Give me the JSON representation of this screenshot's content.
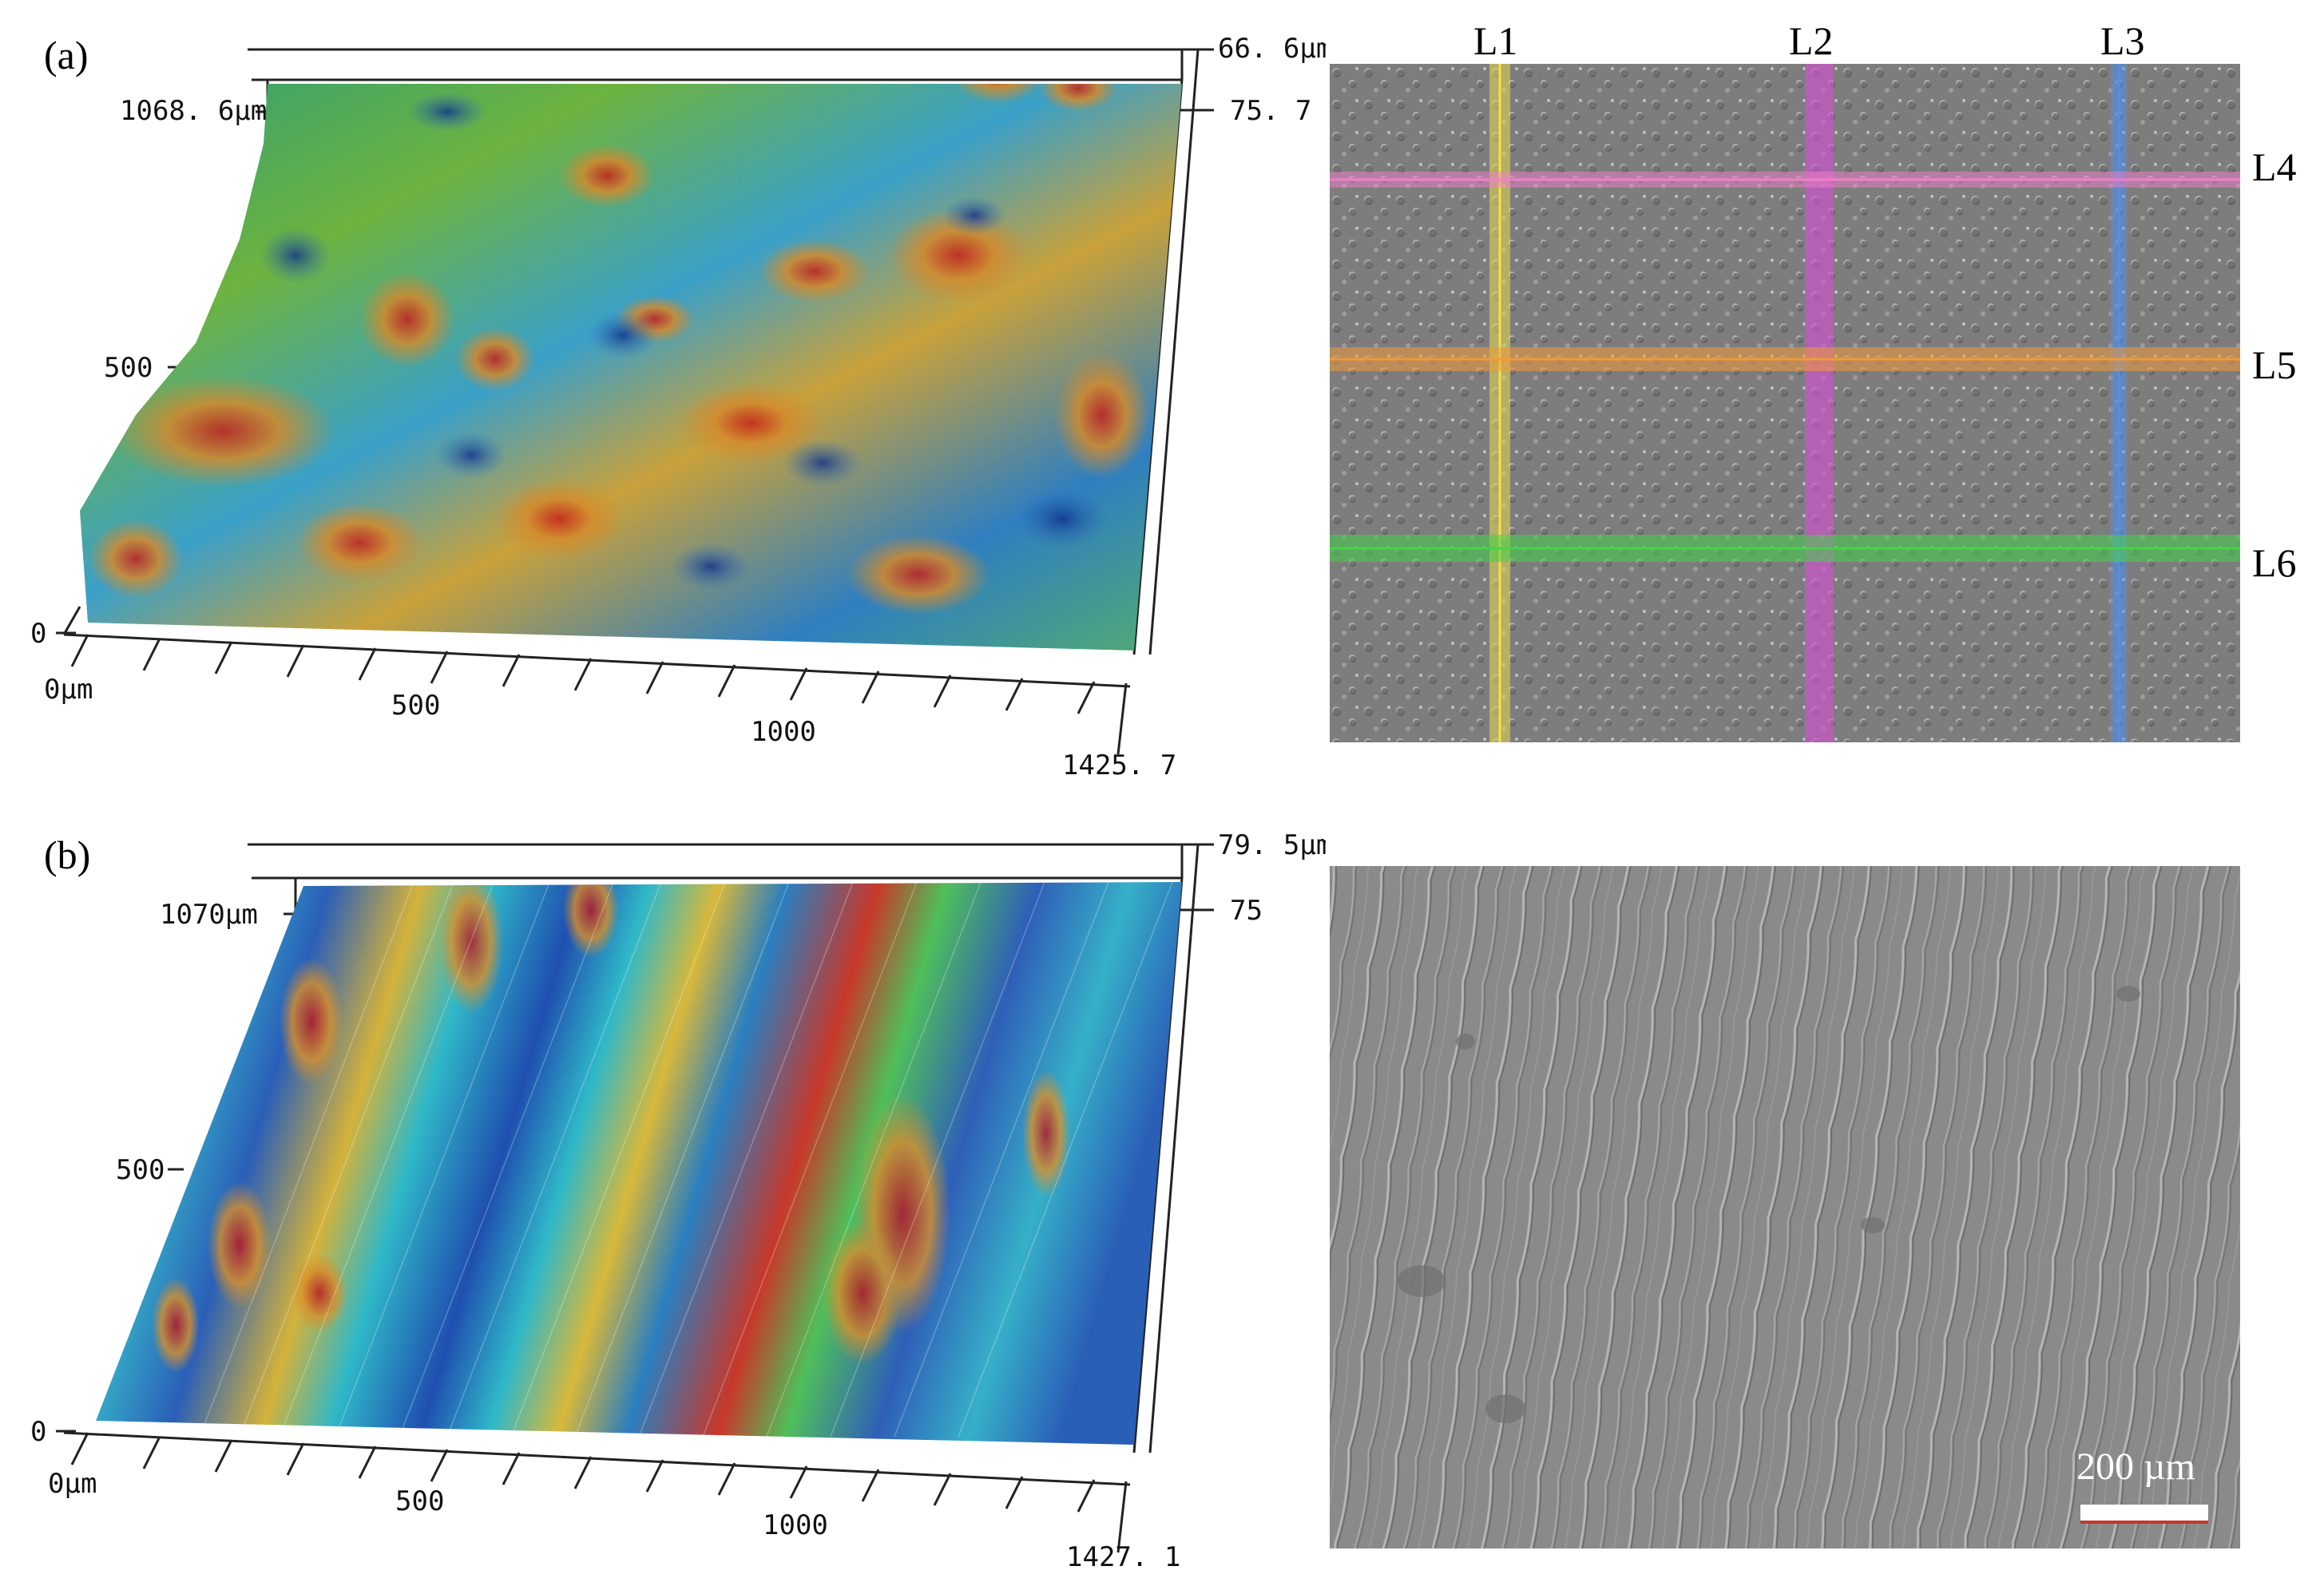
{
  "panels": [
    {
      "label": "(a)",
      "surface3d": {
        "z_max_label": "66. 6µm",
        "z_min_label": "75. 7",
        "y_max_label": "1068. 6µm",
        "y_mid_label": "500",
        "y_zero_label": "0",
        "x_origin_label": "0µm",
        "x_ticks": [
          "500",
          "1000"
        ],
        "x_max_label": "1425. 7"
      },
      "micrograph": {
        "vertical_lines": [
          {
            "label": "L1",
            "color": "#f2e24a"
          },
          {
            "label": "L2",
            "color": "#d94fd9"
          },
          {
            "label": "L3",
            "color": "#4f8ff0"
          }
        ],
        "horizontal_lines": [
          {
            "label": "L4",
            "color": "#f07fc8"
          },
          {
            "label": "L5",
            "color": "#f09a3a"
          },
          {
            "label": "L6",
            "color": "#44d24a"
          }
        ]
      }
    },
    {
      "label": "(b)",
      "surface3d": {
        "z_max_label": "79. 5µm",
        "z_min_label": "75",
        "y_max_label": "1070µm",
        "y_mid_label": "500",
        "y_zero_label": "0",
        "x_origin_label": "0µm",
        "x_ticks": [
          "500",
          "1000"
        ],
        "x_max_label": "1427. 1"
      },
      "micrograph": {
        "scale_bar_label": "200 µm",
        "scale_bar_color": "#ffffff"
      }
    }
  ]
}
